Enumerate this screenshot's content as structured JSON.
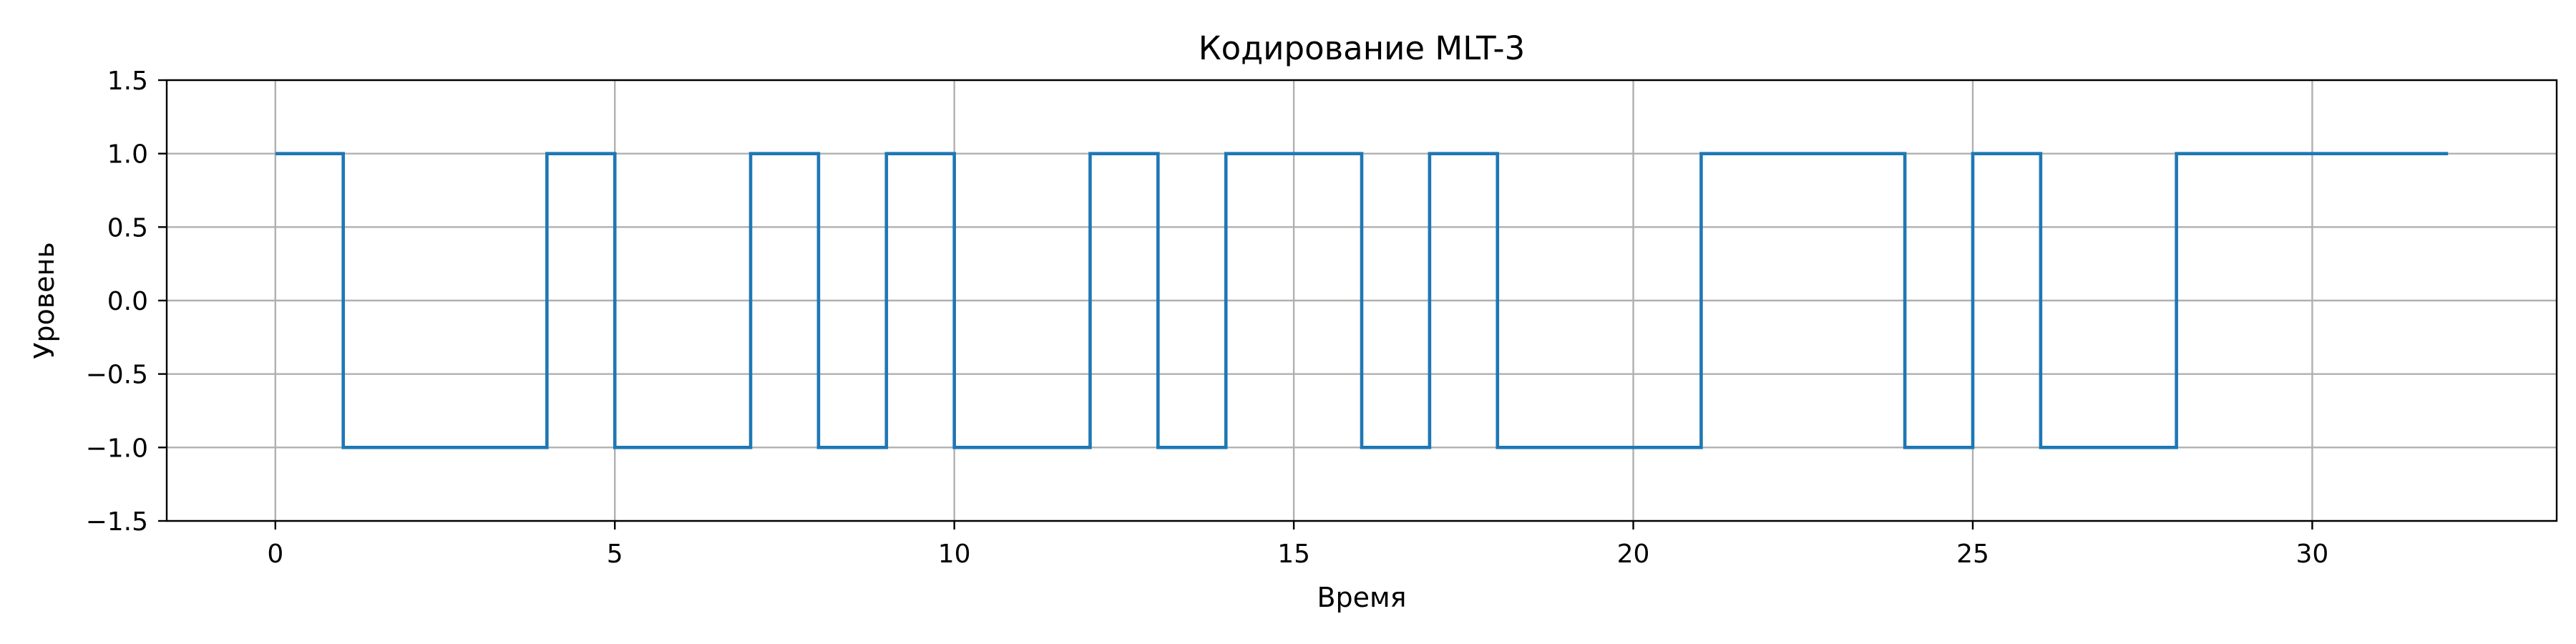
{
  "chart_data": {
    "type": "line",
    "step": "post",
    "title": "Кодирование MLT-3",
    "xlabel": "Время",
    "ylabel": "Уровень",
    "xlim": [
      -1.6,
      33.6
    ],
    "ylim": [
      -1.5,
      1.5
    ],
    "xticks": [
      0,
      5,
      10,
      15,
      20,
      25,
      30
    ],
    "xtick_labels": [
      "0",
      "5",
      "10",
      "15",
      "20",
      "25",
      "30"
    ],
    "yticks": [
      1.5,
      1.0,
      0.5,
      0.0,
      -0.5,
      -1.0,
      -1.5
    ],
    "ytick_labels": [
      "1.5",
      "1.0",
      "0.5",
      "0.0",
      "−0.5",
      "−1.0",
      "−1.5"
    ],
    "grid": true,
    "color": "#1f77b4",
    "series": [
      {
        "x": [
          0,
          1,
          4,
          5,
          7,
          8,
          9,
          10,
          12,
          13,
          14,
          16,
          17,
          18,
          21,
          24,
          25,
          26,
          28,
          32
        ],
        "y": [
          1,
          -1,
          1,
          -1,
          1,
          -1,
          1,
          -1,
          1,
          -1,
          1,
          -1,
          1,
          -1,
          1,
          -1,
          1,
          -1,
          1,
          1
        ]
      }
    ]
  }
}
